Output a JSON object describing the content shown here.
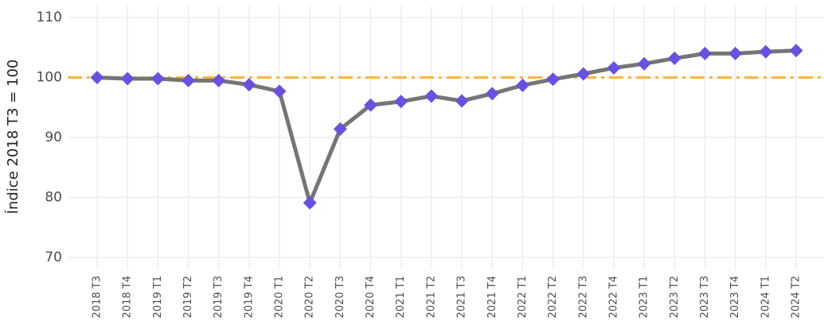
{
  "chart_data": {
    "type": "line",
    "ylabel": "Índice 2018 T3 = 100",
    "categories": [
      "2018 T3",
      "2018 T4",
      "2019 T1",
      "2019 T2",
      "2019 T3",
      "2019 T4",
      "2020 T1",
      "2020 T2",
      "2020 T3",
      "2020 T4",
      "2021 T1",
      "2021 T2",
      "2021 T3",
      "2021 T4",
      "2022 T1",
      "2022 T2",
      "2022 T3",
      "2022 T4",
      "2023 T1",
      "2023 T2",
      "2023 T3",
      "2023 T4",
      "2024 T1",
      "2024 T2"
    ],
    "series": [
      {
        "color": "#757575",
        "marker_color": "#6a50e0",
        "values": [
          100,
          99.8,
          99.8,
          99.5,
          99.5,
          98.8,
          97.7,
          79.1,
          91.4,
          95.4,
          96.0,
          96.9,
          96.1,
          97.3,
          98.7,
          99.7,
          100.6,
          101.6,
          102.3,
          103.2,
          104.0,
          104.0,
          104.3,
          104.5
        ]
      }
    ],
    "reference_line": {
      "value": 100,
      "color": "#f7b73e"
    },
    "ylim": [
      68,
      112
    ],
    "yticks": [
      70,
      80,
      90,
      100,
      110
    ],
    "grid": true
  }
}
